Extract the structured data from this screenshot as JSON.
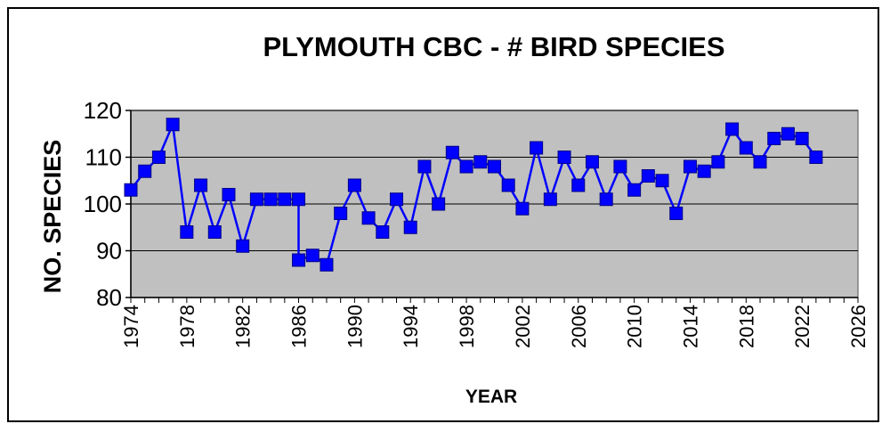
{
  "chart_data": {
    "type": "line",
    "title": "PLYMOUTH CBC - # BIRD SPECIES",
    "xlabel": "YEAR",
    "ylabel": "NO. SPECIES",
    "xlim": [
      1974,
      2026
    ],
    "ylim": [
      80,
      120
    ],
    "x_ticks": [
      "1974",
      "1978",
      "1982",
      "1986",
      "1990",
      "1994",
      "1998",
      "2002",
      "2006",
      "2010",
      "2014",
      "2018",
      "2022",
      "2026"
    ],
    "y_ticks": [
      "80",
      "90",
      "100",
      "110",
      "120"
    ],
    "grid": "horizontal",
    "colors": {
      "plot_bg": "#c0c0c0",
      "series": "#0000ff"
    },
    "series": [
      {
        "points": [
          [
            1974,
            103
          ],
          [
            1975,
            107
          ],
          [
            1976,
            110
          ],
          [
            1977,
            117
          ],
          [
            1978,
            94
          ],
          [
            1979,
            104
          ],
          [
            1980,
            94
          ],
          [
            1981,
            102
          ],
          [
            1982,
            91
          ],
          [
            1983,
            101
          ],
          [
            1984,
            101
          ],
          [
            1985,
            101
          ],
          [
            1986,
            101
          ],
          [
            1986,
            88
          ],
          [
            1987,
            89
          ],
          [
            1988,
            87
          ],
          [
            1989,
            98
          ],
          [
            1990,
            104
          ],
          [
            1991,
            97
          ],
          [
            1992,
            94
          ],
          [
            1993,
            101
          ],
          [
            1994,
            95
          ],
          [
            1995,
            108
          ],
          [
            1996,
            100
          ],
          [
            1997,
            111
          ],
          [
            1998,
            108
          ],
          [
            1999,
            109
          ],
          [
            2000,
            108
          ],
          [
            2001,
            104
          ],
          [
            2002,
            99
          ],
          [
            2003,
            112
          ],
          [
            2004,
            101
          ],
          [
            2005,
            110
          ],
          [
            2006,
            104
          ],
          [
            2007,
            109
          ],
          [
            2008,
            101
          ],
          [
            2009,
            108
          ],
          [
            2010,
            103
          ],
          [
            2011,
            106
          ],
          [
            2012,
            105
          ],
          [
            2013,
            98
          ],
          [
            2014,
            108
          ],
          [
            2015,
            107
          ],
          [
            2016,
            109
          ],
          [
            2017,
            116
          ],
          [
            2018,
            112
          ],
          [
            2019,
            109
          ],
          [
            2020,
            114
          ],
          [
            2021,
            115
          ],
          [
            2022,
            114
          ],
          [
            2023,
            110
          ]
        ]
      }
    ]
  }
}
